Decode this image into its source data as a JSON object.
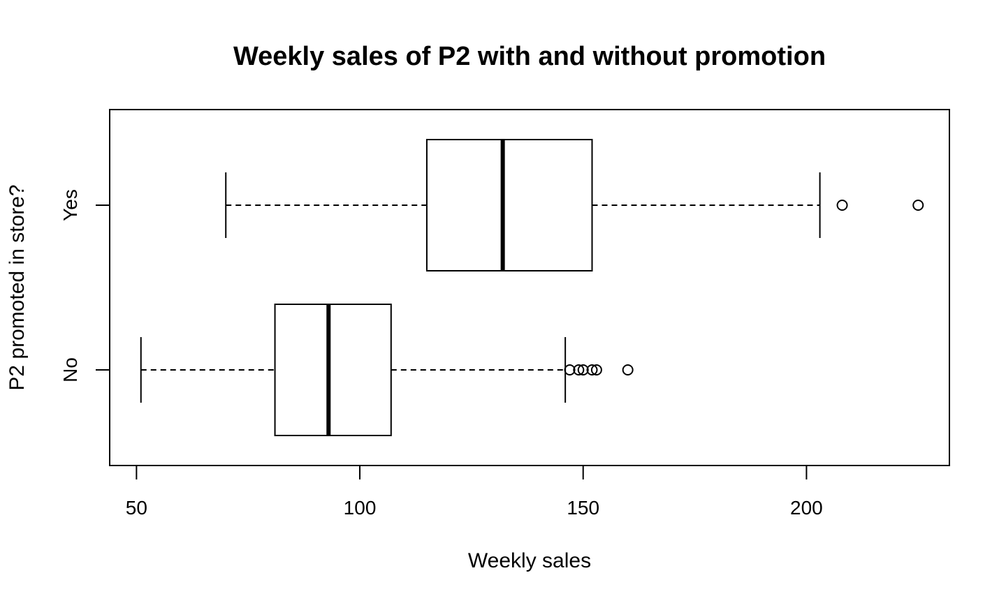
{
  "chart_data": {
    "type": "boxplot",
    "orientation": "horizontal",
    "title": "Weekly sales of P2 with and without promotion",
    "xlabel": "Weekly sales",
    "ylabel": "P2 promoted in store?",
    "xlim": [
      44,
      232
    ],
    "x_ticks": [
      50,
      100,
      150,
      200
    ],
    "groups": [
      {
        "name": "No",
        "whisker_low": 51,
        "q1": 81,
        "median": 93,
        "q3": 107,
        "whisker_high": 146,
        "outliers": [
          147,
          149,
          150,
          152,
          153,
          160
        ]
      },
      {
        "name": "Yes",
        "whisker_low": 70,
        "q1": 115,
        "median": 132,
        "q3": 152,
        "whisker_high": 203,
        "outliers": [
          208,
          225
        ]
      }
    ]
  }
}
